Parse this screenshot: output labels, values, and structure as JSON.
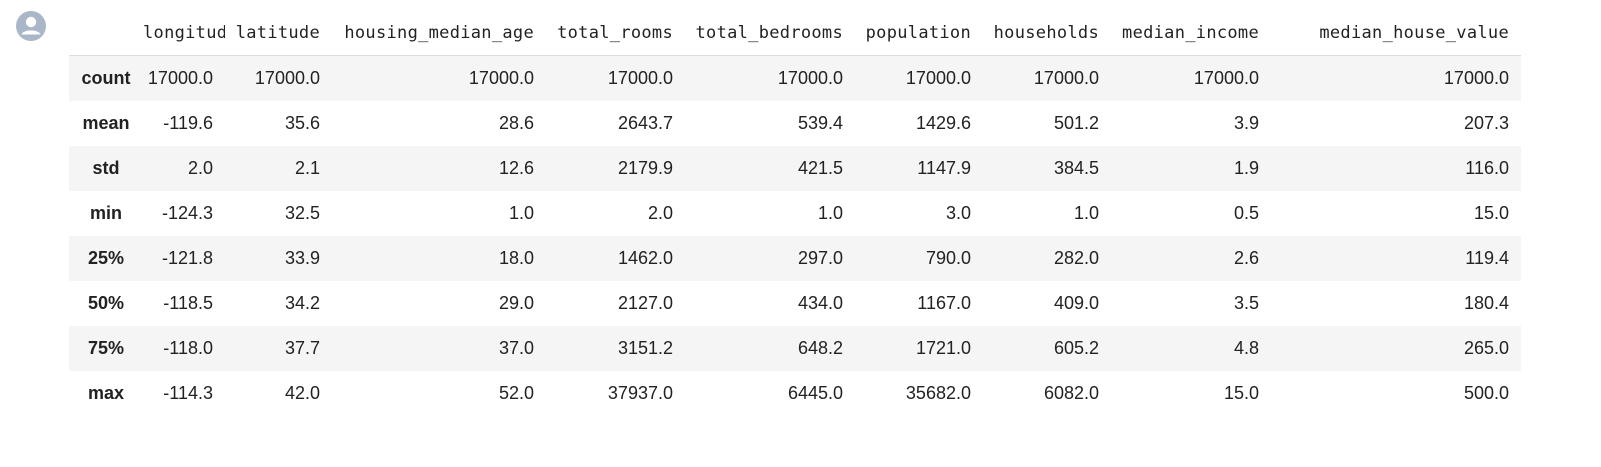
{
  "table": {
    "index_header": "",
    "columns": [
      "longitude",
      "latitude",
      "housing_median_age",
      "total_rooms",
      "total_bedrooms",
      "population",
      "households",
      "median_income",
      "median_house_value"
    ],
    "rows": [
      {
        "label": "count",
        "values": [
          "17000.0",
          "17000.0",
          "17000.0",
          "17000.0",
          "17000.0",
          "17000.0",
          "17000.0",
          "17000.0",
          "17000.0"
        ]
      },
      {
        "label": "mean",
        "values": [
          "-119.6",
          "35.6",
          "28.6",
          "2643.7",
          "539.4",
          "1429.6",
          "501.2",
          "3.9",
          "207.3"
        ]
      },
      {
        "label": "std",
        "values": [
          "2.0",
          "2.1",
          "12.6",
          "2179.9",
          "421.5",
          "1147.9",
          "384.5",
          "1.9",
          "116.0"
        ]
      },
      {
        "label": "min",
        "values": [
          "-124.3",
          "32.5",
          "1.0",
          "2.0",
          "1.0",
          "3.0",
          "1.0",
          "0.5",
          "15.0"
        ]
      },
      {
        "label": "25%",
        "values": [
          "-121.8",
          "33.9",
          "18.0",
          "1462.0",
          "297.0",
          "790.0",
          "282.0",
          "2.6",
          "119.4"
        ]
      },
      {
        "label": "50%",
        "values": [
          "-118.5",
          "34.2",
          "29.0",
          "2127.0",
          "434.0",
          "1167.0",
          "409.0",
          "3.5",
          "180.4"
        ]
      },
      {
        "label": "75%",
        "values": [
          "-118.0",
          "37.7",
          "37.0",
          "3151.2",
          "648.2",
          "1721.0",
          "605.2",
          "4.8",
          "265.0"
        ]
      },
      {
        "label": "max",
        "values": [
          "-114.3",
          "42.0",
          "52.0",
          "37937.0",
          "6445.0",
          "35682.0",
          "6082.0",
          "15.0",
          "500.0"
        ]
      }
    ]
  },
  "avatar": {
    "icon": "user-avatar-icon",
    "color": "#a9b7c9"
  }
}
